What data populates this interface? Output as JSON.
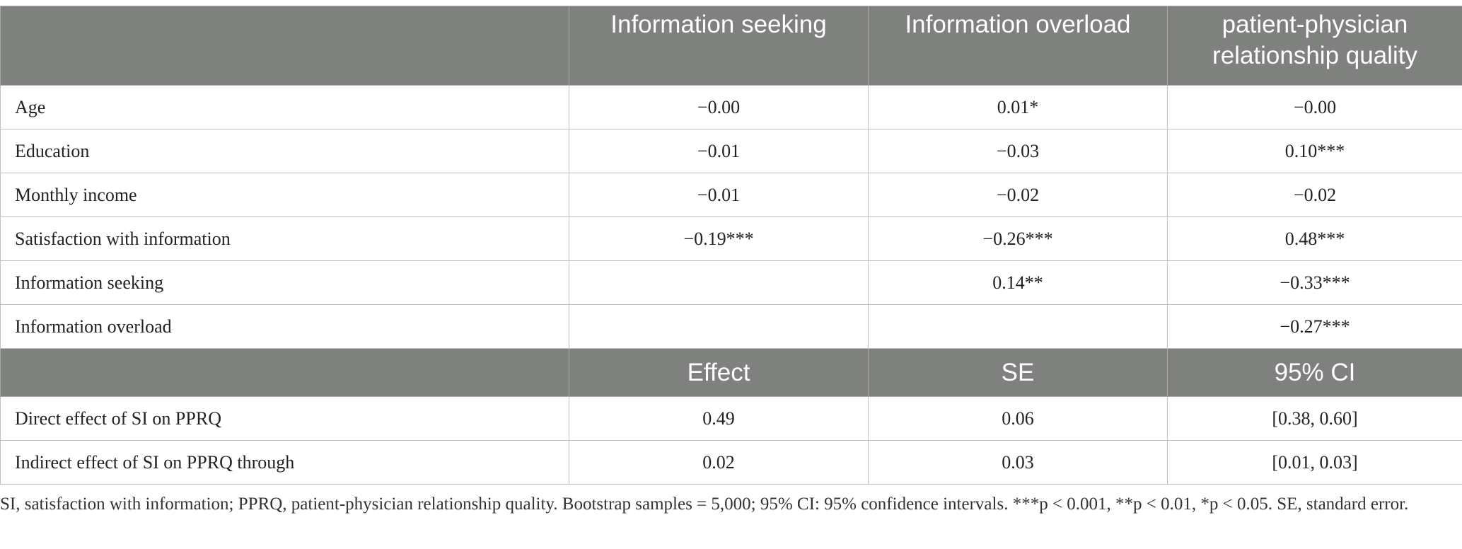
{
  "header": {
    "columns": [
      "",
      "Information seeking",
      "Information overload",
      "patient-physician relationship quality"
    ]
  },
  "regression_rows": [
    {
      "label": "Age",
      "cells": [
        "−0.00",
        "0.01*",
        "−0.00"
      ]
    },
    {
      "label": "Education",
      "cells": [
        "−0.01",
        "−0.03",
        "0.10***"
      ]
    },
    {
      "label": "Monthly income",
      "cells": [
        "−0.01",
        "−0.02",
        "−0.02"
      ]
    },
    {
      "label": "Satisfaction with information",
      "cells": [
        "−0.19***",
        "−0.26***",
        "0.48***"
      ]
    },
    {
      "label": "Information seeking",
      "cells": [
        "",
        "0.14**",
        "−0.33***"
      ]
    },
    {
      "label": "Information overload",
      "cells": [
        "",
        "",
        "−0.27***"
      ]
    }
  ],
  "subheader": {
    "columns": [
      "",
      "Effect",
      "SE",
      "95% CI"
    ]
  },
  "effect_rows": [
    {
      "label": "Direct effect of SI on PPRQ",
      "cells": [
        "0.49",
        "0.06",
        "[0.38, 0.60]"
      ]
    },
    {
      "label": "Indirect effect of SI on PPRQ through",
      "cells": [
        "0.02",
        "0.03",
        "[0.01, 0.03]"
      ]
    }
  ],
  "footnote": "SI, satisfaction with information; PPRQ, patient-physician relationship quality. Bootstrap samples = 5,000; 95% CI: 95% confidence intervals. ***p < 0.001, **p < 0.01, *p < 0.05. SE, standard error."
}
